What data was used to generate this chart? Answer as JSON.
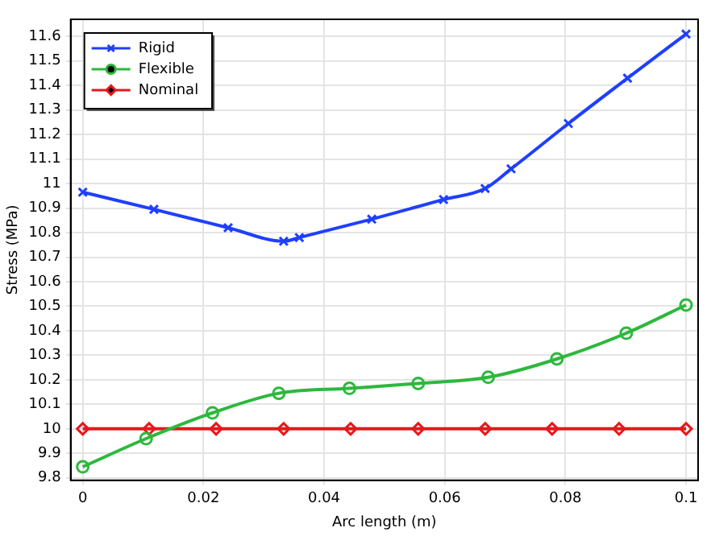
{
  "chart_data": {
    "type": "line",
    "xlabel": "Arc length (m)",
    "ylabel": "Stress (MPa)",
    "xlim": [
      -0.002,
      0.102
    ],
    "ylim": [
      9.79,
      11.67
    ],
    "xticks": [
      0,
      0.02,
      0.04,
      0.06,
      0.08,
      0.1
    ],
    "yticks": [
      9.8,
      9.9,
      10,
      10.1,
      10.2,
      10.3,
      10.4,
      10.5,
      10.6,
      10.7,
      10.8,
      10.9,
      11,
      11.1,
      11.2,
      11.3,
      11.4,
      11.5,
      11.6
    ],
    "grid": true,
    "legend": "top left",
    "line_style": "solid",
    "series": [
      {
        "name": "Rigid",
        "color": "#1f3fff",
        "marker": "cross",
        "x": [
          0,
          0.0118,
          0.0241,
          0.0333,
          0.0359,
          0.0479,
          0.0598,
          0.0667,
          0.071,
          0.0805,
          0.0903,
          0.1
        ],
        "values": [
          10.965,
          10.895,
          10.82,
          10.765,
          10.78,
          10.855,
          10.935,
          10.98,
          11.06,
          11.245,
          11.43,
          11.61
        ]
      },
      {
        "name": "Flexible",
        "color": "#2db83d",
        "marker": "circle",
        "x": [
          0,
          0.0105,
          0.0215,
          0.0325,
          0.0442,
          0.0556,
          0.0672,
          0.0786,
          0.0901,
          0.1
        ],
        "values": [
          9.845,
          9.96,
          10.065,
          10.145,
          10.165,
          10.185,
          10.21,
          10.285,
          10.39,
          10.505
        ]
      },
      {
        "name": "Nominal",
        "color": "#e8171d",
        "marker": "diamond",
        "x": [
          0,
          0.011,
          0.0221,
          0.0333,
          0.0444,
          0.0556,
          0.0667,
          0.0778,
          0.0889,
          0.1
        ],
        "values": [
          10,
          10,
          10,
          10,
          10,
          10,
          10,
          10,
          10,
          10
        ]
      }
    ]
  }
}
